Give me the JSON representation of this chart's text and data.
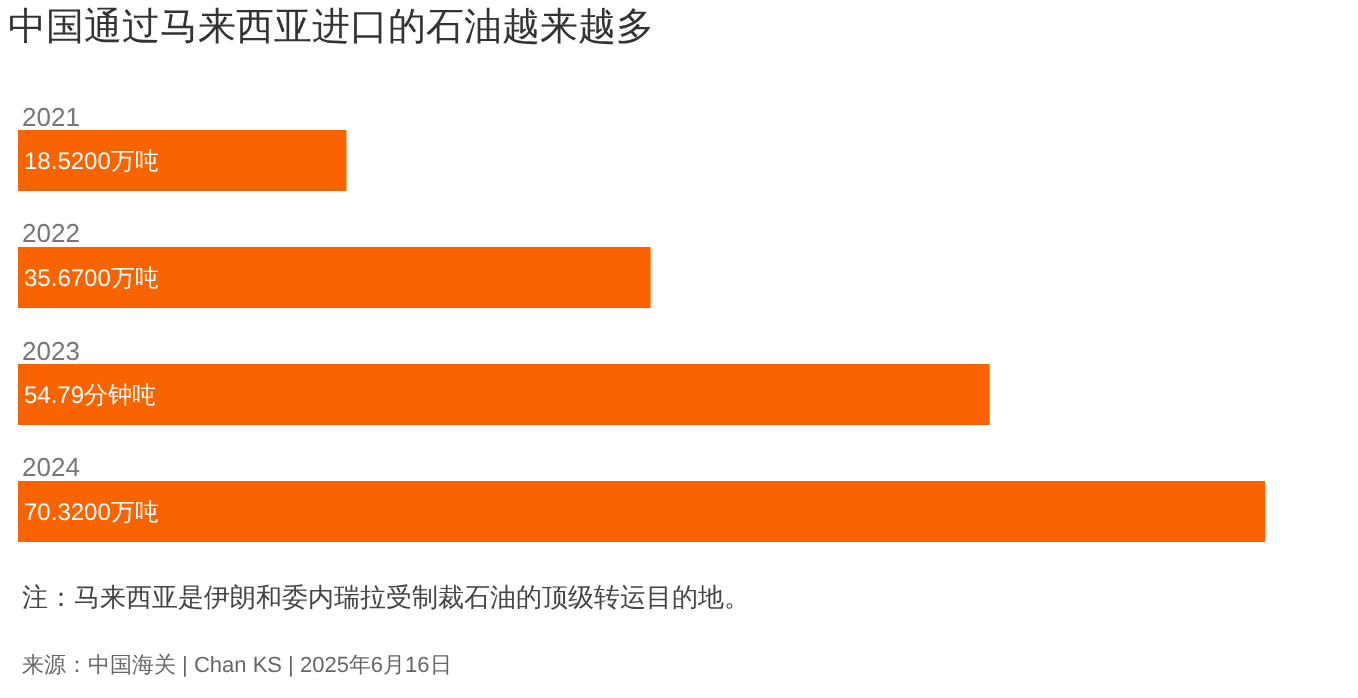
{
  "chart_data": {
    "type": "bar",
    "orientation": "horizontal",
    "title": "中国通过马来西亚进口的石油越来越多",
    "categories": [
      "2021",
      "2022",
      "2023",
      "2024"
    ],
    "values": [
      18.52,
      35.67,
      54.79,
      70.32
    ],
    "value_labels": [
      "18.5200万吨",
      "35.6700万吨",
      "54.79分钟吨",
      "70.3200万吨"
    ],
    "color": "#fa6400",
    "annotations": [
      "注：马来西亚是伊朗和委内瑞拉受制裁石油的顶级转运目的地。",
      "来源：中国海关 | Chan KS | 2025年6月16日"
    ]
  }
}
